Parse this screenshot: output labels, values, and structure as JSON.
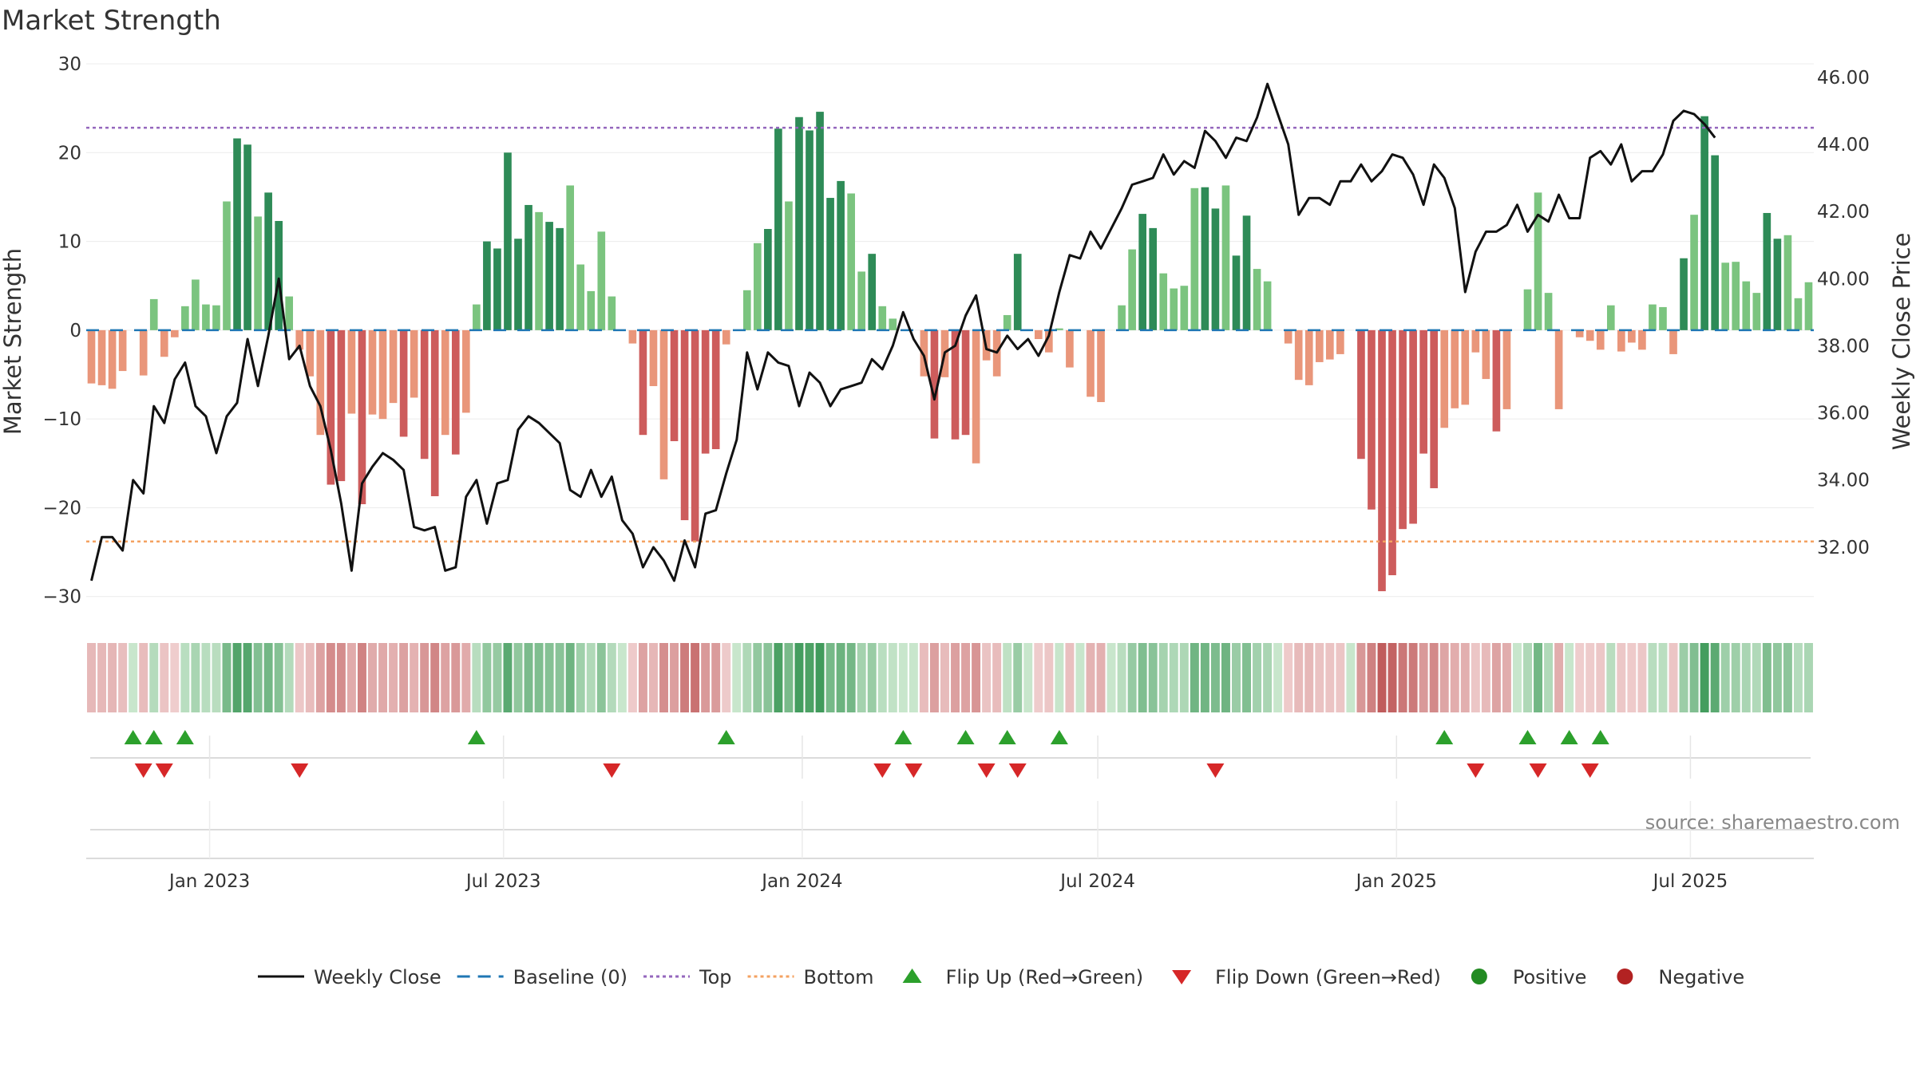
{
  "title": "Market Strength",
  "source": "source: sharemaestro.com",
  "chart_data": {
    "type": "bar",
    "title": "Market Strength",
    "ylabel_left": "Market Strength",
    "ylabel_right": "Weekly Close Price",
    "ylim_left": [
      -32,
      30
    ],
    "ylim_right": [
      30.0,
      46.4
    ],
    "yticks_left": [
      30,
      20,
      10,
      0,
      -10,
      -20,
      -30
    ],
    "yticks_left_labels": [
      "30",
      "20",
      "10",
      "0",
      "−10",
      "−20",
      "−30"
    ],
    "yticks_right": [
      46,
      44,
      42,
      40,
      38,
      36,
      34,
      32
    ],
    "yticks_right_labels": [
      "46.00",
      "44.00",
      "42.00",
      "40.00",
      "38.00",
      "36.00",
      "34.00",
      "32.00"
    ],
    "x_start": "2022-10-17",
    "x_end": "2025-09-15",
    "x_tick_labels": [
      "Jan 2023",
      "Jul 2023",
      "Jan 2024",
      "Jul 2024",
      "Jan 2025",
      "Jul 2025"
    ],
    "top_line": 22.8,
    "bottom_line": -23.8,
    "strength": [
      -6.0,
      -6.2,
      -6.6,
      -4.6,
      0.0,
      -5.1,
      3.5,
      -3.0,
      -0.8,
      2.7,
      5.7,
      2.9,
      2.8,
      14.5,
      21.6,
      20.9,
      12.8,
      15.5,
      12.3,
      3.8,
      -2.2,
      -5.2,
      -11.8,
      -17.4,
      -17.0,
      -9.4,
      -19.6,
      -9.5,
      -10.0,
      -8.2,
      -12.0,
      -7.6,
      -14.5,
      -18.7,
      -11.8,
      -14.0,
      -9.3,
      2.9,
      10.0,
      9.2,
      20.0,
      10.3,
      14.1,
      13.3,
      12.2,
      11.5,
      16.3,
      7.4,
      4.4,
      11.1,
      3.8,
      0.0,
      -1.5,
      -11.8,
      -6.3,
      -16.8,
      -12.5,
      -21.4,
      -23.8,
      -13.9,
      -13.4,
      -1.6,
      0.0,
      4.5,
      9.8,
      11.4,
      22.7,
      14.5,
      24.0,
      22.5,
      24.6,
      14.9,
      16.8,
      15.4,
      6.6,
      8.6,
      2.7,
      1.3,
      0.0,
      0.0,
      -5.2,
      -12.2,
      -5.3,
      -12.3,
      -11.8,
      -15.0,
      -3.4,
      -5.2,
      1.7,
      8.6,
      0.0,
      -1.0,
      -2.5,
      0.2,
      -4.2,
      0.0,
      -7.5,
      -8.1,
      0.0,
      2.8,
      9.1,
      13.1,
      11.5,
      6.4,
      4.7,
      5.0,
      16.0,
      16.1,
      13.7,
      16.3,
      8.4,
      12.9,
      6.9,
      5.5,
      0.0,
      -1.5,
      -5.6,
      -6.2,
      -3.6,
      -3.3,
      -2.7,
      0.0,
      -14.5,
      -20.2,
      -29.4,
      -27.6,
      -22.4,
      -21.8,
      -13.9,
      -17.8,
      -11.0,
      -8.8,
      -8.4,
      -2.5,
      -5.5,
      -11.4,
      -8.9,
      0.0,
      4.6,
      15.5,
      4.2,
      -8.9,
      0.0,
      -0.8,
      -1.2,
      -2.2,
      2.8,
      -2.4,
      -1.4,
      -2.2,
      2.9,
      2.6,
      -2.7,
      8.1,
      13.0,
      24.1,
      19.7,
      7.6,
      7.7,
      5.5,
      4.2,
      13.2,
      10.3,
      10.7,
      3.6,
      5.4
    ],
    "weekly_close": [
      31.0,
      32.3,
      32.3,
      31.9,
      34.0,
      33.6,
      36.2,
      35.7,
      37.0,
      37.5,
      36.2,
      35.9,
      34.8,
      35.9,
      36.3,
      38.2,
      36.8,
      38.3,
      40.0,
      37.6,
      38.0,
      36.8,
      36.2,
      34.9,
      33.3,
      31.3,
      33.9,
      34.4,
      34.8,
      34.6,
      34.3,
      32.6,
      32.5,
      32.6,
      31.3,
      31.4,
      33.5,
      34.0,
      32.7,
      33.9,
      34.0,
      35.5,
      35.9,
      35.7,
      35.4,
      35.1,
      33.7,
      33.5,
      34.3,
      33.5,
      34.1,
      32.8,
      32.4,
      31.4,
      32.0,
      31.6,
      31.0,
      32.2,
      31.4,
      33.0,
      33.1,
      34.2,
      35.2,
      37.8,
      36.7,
      37.8,
      37.5,
      37.4,
      36.2,
      37.2,
      36.9,
      36.2,
      36.7,
      36.8,
      36.9,
      37.6,
      37.3,
      38.0,
      39.0,
      38.2,
      37.7,
      36.4,
      37.8,
      38.0,
      38.9,
      39.5,
      37.9,
      37.8,
      38.3,
      37.9,
      38.2,
      37.7,
      38.3,
      39.6,
      40.7,
      40.6,
      41.4,
      40.9,
      41.5,
      42.1,
      42.8,
      42.9,
      43.0,
      43.7,
      43.1,
      43.5,
      43.3,
      44.4,
      44.1,
      43.6,
      44.2,
      44.1,
      44.8,
      45.8,
      44.9,
      44.0,
      41.9,
      42.4,
      42.4,
      42.2,
      42.9,
      42.9,
      43.4,
      42.9,
      43.2,
      43.7,
      43.6,
      43.1,
      42.2,
      43.4,
      43.0,
      42.1,
      39.6,
      40.8,
      41.4,
      41.4,
      41.6,
      42.2,
      41.4,
      41.9,
      41.7,
      42.5,
      41.8,
      41.8,
      43.6,
      43.8,
      43.4,
      44.0,
      42.9,
      43.2,
      43.2,
      43.7,
      44.7,
      45.0,
      44.9,
      44.6,
      44.2
    ],
    "flip_up_indices": [
      4,
      6,
      9,
      37,
      61,
      78,
      84,
      88,
      93,
      130,
      138,
      142,
      145
    ],
    "flip_down_indices": [
      5,
      7,
      20,
      50,
      76,
      79,
      86,
      89,
      108,
      133,
      139,
      144
    ],
    "legend": [
      {
        "label": "Weekly Close",
        "kind": "line",
        "color": "#111111"
      },
      {
        "label": "Baseline (0)",
        "kind": "dash",
        "color": "#1f77b4"
      },
      {
        "label": "Top",
        "kind": "dot",
        "color": "#9467bd"
      },
      {
        "label": "Bottom",
        "kind": "dot",
        "color": "#f4a261"
      },
      {
        "label": "Flip Up (Red→Green)",
        "kind": "triangle-up",
        "color": "#2ca02c"
      },
      {
        "label": "Flip Down (Green→Red)",
        "kind": "triangle-down",
        "color": "#d62728"
      },
      {
        "label": "Positive",
        "kind": "dot-marker",
        "color": "#228b22"
      },
      {
        "label": "Negative",
        "kind": "dot-marker",
        "color": "#b22222"
      }
    ],
    "legend_position": "bottom-center",
    "colors": {
      "pos_strong": "#2e8b57",
      "pos_light": "#7bc47f",
      "neg_strong": "#cd5c5c",
      "neg_light": "#e9967a",
      "top": "#9467bd",
      "bottom": "#f4a261",
      "baseline": "#1f77b4",
      "close": "#111111",
      "flip_up": "#2ca02c",
      "flip_down": "#d62728"
    }
  }
}
